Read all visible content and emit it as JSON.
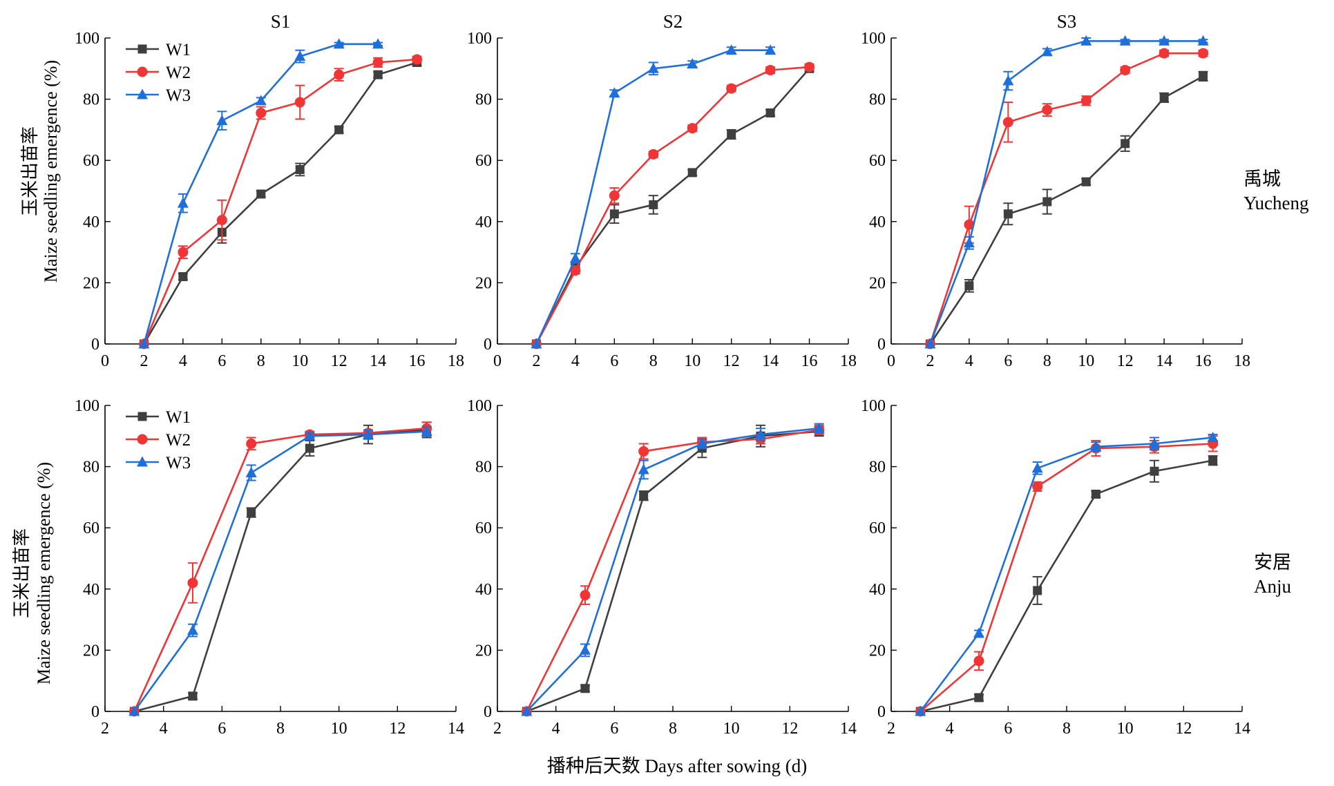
{
  "figure": {
    "xlabel": "播种后天数 Days after sowing (d)",
    "ylabel_cn": "玉米出苗率",
    "ylabel_en": "Maize seedling emergence (%)",
    "rows": [
      {
        "site_cn": "禹城",
        "site_en": "Yucheng"
      },
      {
        "site_cn": "安居",
        "site_en": "Anju"
      }
    ],
    "legend": [
      "W1",
      "W2",
      "W3"
    ],
    "colors": {
      "W1": "#3f3f3f",
      "W2": "#ef3535",
      "W3": "#1f6fdb"
    },
    "markers": {
      "W1": "square",
      "W2": "circle",
      "W3": "triangle"
    }
  },
  "chart_data": [
    {
      "type": "line",
      "title": "S1",
      "row": "禹城 Yucheng",
      "xlim": [
        0,
        18
      ],
      "xticks": [
        0,
        2,
        4,
        6,
        8,
        10,
        12,
        14,
        16,
        18
      ],
      "ylim": [
        0,
        100
      ],
      "yticks": [
        0,
        20,
        40,
        60,
        80,
        100
      ],
      "legend": "top-left",
      "series": [
        {
          "name": "W1",
          "x": [
            2,
            4,
            6,
            8,
            10,
            12,
            14,
            16
          ],
          "y": [
            0,
            22,
            36.5,
            49,
            57,
            70,
            88,
            92
          ],
          "err": [
            0,
            1,
            3.5,
            1,
            2,
            1,
            1,
            1
          ]
        },
        {
          "name": "W2",
          "x": [
            2,
            4,
            6,
            8,
            10,
            12,
            14,
            16
          ],
          "y": [
            0,
            30,
            40.5,
            75.5,
            79,
            88,
            92,
            93
          ],
          "err": [
            0,
            2,
            6.5,
            2,
            5.5,
            2,
            1.5,
            1
          ]
        },
        {
          "name": "W3",
          "x": [
            2,
            4,
            6,
            8,
            10,
            12,
            14
          ],
          "y": [
            0,
            46,
            73,
            79.5,
            94,
            98,
            98
          ],
          "err": [
            0,
            3,
            3,
            1,
            2,
            0.5,
            0.5
          ]
        }
      ]
    },
    {
      "type": "line",
      "title": "S2",
      "row": "禹城 Yucheng",
      "xlim": [
        0,
        18
      ],
      "xticks": [
        0,
        2,
        4,
        6,
        8,
        10,
        12,
        14,
        16,
        18
      ],
      "ylim": [
        0,
        100
      ],
      "yticks": [
        0,
        20,
        40,
        60,
        80,
        100
      ],
      "series": [
        {
          "name": "W1",
          "x": [
            2,
            4,
            6,
            8,
            10,
            12,
            14,
            16
          ],
          "y": [
            0,
            25,
            42.5,
            45.5,
            56,
            68.5,
            75.5,
            90
          ],
          "err": [
            0,
            1,
            3,
            3,
            1,
            1.5,
            1,
            1
          ]
        },
        {
          "name": "W2",
          "x": [
            2,
            4,
            6,
            8,
            10,
            12,
            14,
            16
          ],
          "y": [
            0,
            24,
            48.5,
            62,
            70.5,
            83.5,
            89.5,
            90.5
          ],
          "err": [
            0,
            1,
            2.5,
            1,
            1,
            1,
            1,
            1
          ]
        },
        {
          "name": "W3",
          "x": [
            2,
            4,
            6,
            8,
            10,
            12,
            14
          ],
          "y": [
            0,
            28,
            82,
            90,
            91.5,
            96,
            96
          ],
          "err": [
            0,
            1.5,
            1,
            2,
            1,
            1,
            1
          ]
        }
      ]
    },
    {
      "type": "line",
      "title": "S3",
      "row": "禹城 Yucheng",
      "xlim": [
        0,
        18
      ],
      "xticks": [
        0,
        2,
        4,
        6,
        8,
        10,
        12,
        14,
        16,
        18
      ],
      "ylim": [
        0,
        100
      ],
      "yticks": [
        0,
        20,
        40,
        60,
        80,
        100
      ],
      "series": [
        {
          "name": "W1",
          "x": [
            2,
            4,
            6,
            8,
            10,
            12,
            14,
            16
          ],
          "y": [
            0,
            19,
            42.5,
            46.5,
            53,
            65.5,
            80.5,
            87.5
          ],
          "err": [
            0,
            2,
            3.5,
            4,
            1,
            2.5,
            1.5,
            1.5
          ]
        },
        {
          "name": "W2",
          "x": [
            2,
            4,
            6,
            8,
            10,
            12,
            14,
            16
          ],
          "y": [
            0,
            39,
            72.5,
            76.5,
            79.5,
            89.5,
            95,
            95
          ],
          "err": [
            0,
            6,
            6.5,
            2,
            1.5,
            1,
            1,
            1
          ]
        },
        {
          "name": "W3",
          "x": [
            2,
            4,
            6,
            8,
            10,
            12,
            14,
            16
          ],
          "y": [
            0,
            33,
            86,
            95.5,
            99,
            99,
            99,
            99
          ],
          "err": [
            0,
            2,
            3,
            1,
            1,
            0.5,
            0.5,
            0.5
          ]
        }
      ]
    },
    {
      "type": "line",
      "row": "安居 Anju",
      "xlim": [
        2,
        14
      ],
      "xticks": [
        2,
        4,
        6,
        8,
        10,
        12,
        14
      ],
      "ylim": [
        0,
        100
      ],
      "yticks": [
        0,
        20,
        40,
        60,
        80,
        100
      ],
      "legend": "top-left",
      "series": [
        {
          "name": "W1",
          "x": [
            3,
            5,
            7,
            9,
            11,
            13
          ],
          "y": [
            0,
            5,
            65,
            86,
            90.5,
            92
          ],
          "err": [
            0,
            1,
            1.5,
            2.5,
            3,
            2.5
          ]
        },
        {
          "name": "W2",
          "x": [
            3,
            5,
            7,
            9,
            11,
            13
          ],
          "y": [
            0,
            42,
            87.5,
            90.5,
            91,
            92.5
          ],
          "err": [
            0,
            6.5,
            2,
            1,
            1,
            2
          ]
        },
        {
          "name": "W3",
          "x": [
            3,
            5,
            7,
            9,
            11,
            13
          ],
          "y": [
            0,
            26.5,
            78,
            90,
            90.5,
            91.5
          ],
          "err": [
            0,
            2,
            2.5,
            1,
            1.5,
            1.5
          ]
        }
      ]
    },
    {
      "type": "line",
      "row": "安居 Anju",
      "xlim": [
        2,
        14
      ],
      "xticks": [
        2,
        4,
        6,
        8,
        10,
        12,
        14
      ],
      "ylim": [
        0,
        100
      ],
      "yticks": [
        0,
        20,
        40,
        60,
        80,
        100
      ],
      "series": [
        {
          "name": "W1",
          "x": [
            3,
            5,
            7,
            9,
            11,
            13
          ],
          "y": [
            0,
            7.5,
            70.5,
            86,
            90,
            91.5
          ],
          "err": [
            0,
            1,
            1.5,
            3,
            3.5,
            1.5
          ]
        },
        {
          "name": "W2",
          "x": [
            3,
            5,
            7,
            9,
            11,
            13
          ],
          "y": [
            0,
            38,
            85,
            88,
            89,
            92
          ],
          "err": [
            0,
            3,
            2.5,
            1.5,
            1.5,
            1.5
          ]
        },
        {
          "name": "W3",
          "x": [
            3,
            5,
            7,
            9,
            11,
            13
          ],
          "y": [
            0,
            20,
            79,
            87.5,
            90.5,
            92.5
          ],
          "err": [
            0,
            2,
            3,
            1.5,
            2,
            1.5
          ]
        }
      ]
    },
    {
      "type": "line",
      "row": "安居 Anju",
      "xlim": [
        2,
        14
      ],
      "xticks": [
        2,
        4,
        6,
        8,
        10,
        12,
        14
      ],
      "ylim": [
        0,
        100
      ],
      "yticks": [
        0,
        20,
        40,
        60,
        80,
        100
      ],
      "series": [
        {
          "name": "W1",
          "x": [
            3,
            5,
            7,
            9,
            11,
            13
          ],
          "y": [
            0,
            4.5,
            39.5,
            71,
            78.5,
            82
          ],
          "err": [
            0,
            1,
            4.5,
            1,
            3.5,
            1.5
          ]
        },
        {
          "name": "W2",
          "x": [
            3,
            5,
            7,
            9,
            11,
            13
          ],
          "y": [
            0,
            16.5,
            73.5,
            86,
            86.5,
            87.5
          ],
          "err": [
            0,
            3,
            1.5,
            2.5,
            2,
            2.5
          ]
        },
        {
          "name": "W3",
          "x": [
            3,
            5,
            7,
            9,
            11,
            13
          ],
          "y": [
            0,
            25.5,
            79.5,
            86.5,
            87.5,
            89.5
          ],
          "err": [
            0,
            1,
            2,
            1.5,
            2,
            1
          ]
        }
      ]
    }
  ]
}
